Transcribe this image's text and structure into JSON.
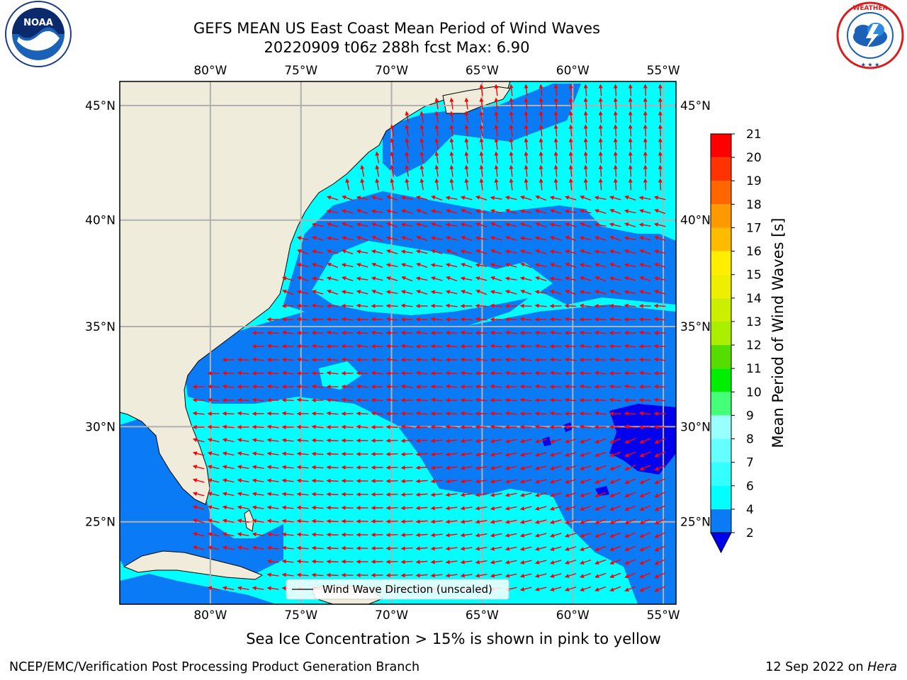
{
  "header": {
    "title_line1": "GEFS MEAN US East Coast Mean Period of Wind Waves",
    "title_line2": "20220909 t06z 288h fcst   Max: 6.90"
  },
  "logos": {
    "left": {
      "name": "noaa-logo",
      "text": "NOAA",
      "ring_text": "NATIONAL OCEANIC AND ATMOSPHERIC ADMINISTRATION · U.S. DEPARTMENT OF COMMERCE"
    },
    "right": {
      "name": "nws-logo",
      "ring_text": "NATIONAL WEATHER SERVICE"
    }
  },
  "map": {
    "lon_labels": [
      "80°W",
      "75°W",
      "70°W",
      "65°W",
      "60°W",
      "55°W"
    ],
    "lat_labels": [
      "45°N",
      "40°N",
      "35°N",
      "30°N",
      "25°N"
    ],
    "lon_values": [
      -80,
      -75,
      -70,
      -65,
      -60,
      -55
    ],
    "lat_values": [
      45,
      40,
      35,
      30,
      25
    ],
    "extent": {
      "lon_min": -85,
      "lon_max": -54.3,
      "lat_min": 20.5,
      "lat_max": 46
    },
    "legend_label": "Wind Wave Direction (unscaled)",
    "land_color": "#efecdb",
    "arrow_color": "#ff0000",
    "grid_color": "#b0b0b0",
    "dominant_wave_direction_deg_from_east": 180
  },
  "colorbar": {
    "label": "Mean Period of Wind Waves [s]",
    "ticks": [
      "21",
      "20",
      "19",
      "18",
      "17",
      "16",
      "15",
      "14",
      "13",
      "12",
      "11",
      "10",
      "9",
      "8",
      "7",
      "6",
      "4",
      "2"
    ],
    "bands": [
      {
        "from": 2,
        "to": 4,
        "color": "#0a7af5"
      },
      {
        "from": 4,
        "to": 6,
        "color": "#00ffff"
      },
      {
        "from": 6,
        "to": 7,
        "color": "#33ffff"
      },
      {
        "from": 7,
        "to": 8,
        "color": "#66ffff"
      },
      {
        "from": 8,
        "to": 9,
        "color": "#99ffff"
      },
      {
        "from": 9,
        "to": 10,
        "color": "#44ff77"
      },
      {
        "from": 10,
        "to": 11,
        "color": "#00ee00"
      },
      {
        "from": 11,
        "to": 12,
        "color": "#55dd00"
      },
      {
        "from": 12,
        "to": 13,
        "color": "#aaee00"
      },
      {
        "from": 13,
        "to": 14,
        "color": "#ccee00"
      },
      {
        "from": 14,
        "to": 15,
        "color": "#eeee00"
      },
      {
        "from": 15,
        "to": 16,
        "color": "#ffee00"
      },
      {
        "from": 16,
        "to": 17,
        "color": "#ffbb00"
      },
      {
        "from": 17,
        "to": 18,
        "color": "#ff9900"
      },
      {
        "from": 18,
        "to": 19,
        "color": "#ff6600"
      },
      {
        "from": 19,
        "to": 20,
        "color": "#ff3300"
      },
      {
        "from": 20,
        "to": 21,
        "color": "#ff0000"
      }
    ],
    "under_color": "#0000ee"
  },
  "footer": {
    "note": "Sea Ice Concentration > 15% is shown in pink to yellow",
    "credit_left": "NCEP/EMC/Verification Post Processing Product Generation Branch",
    "credit_right_prefix": "12 Sep 2022 on ",
    "credit_right_host": "Hera"
  }
}
